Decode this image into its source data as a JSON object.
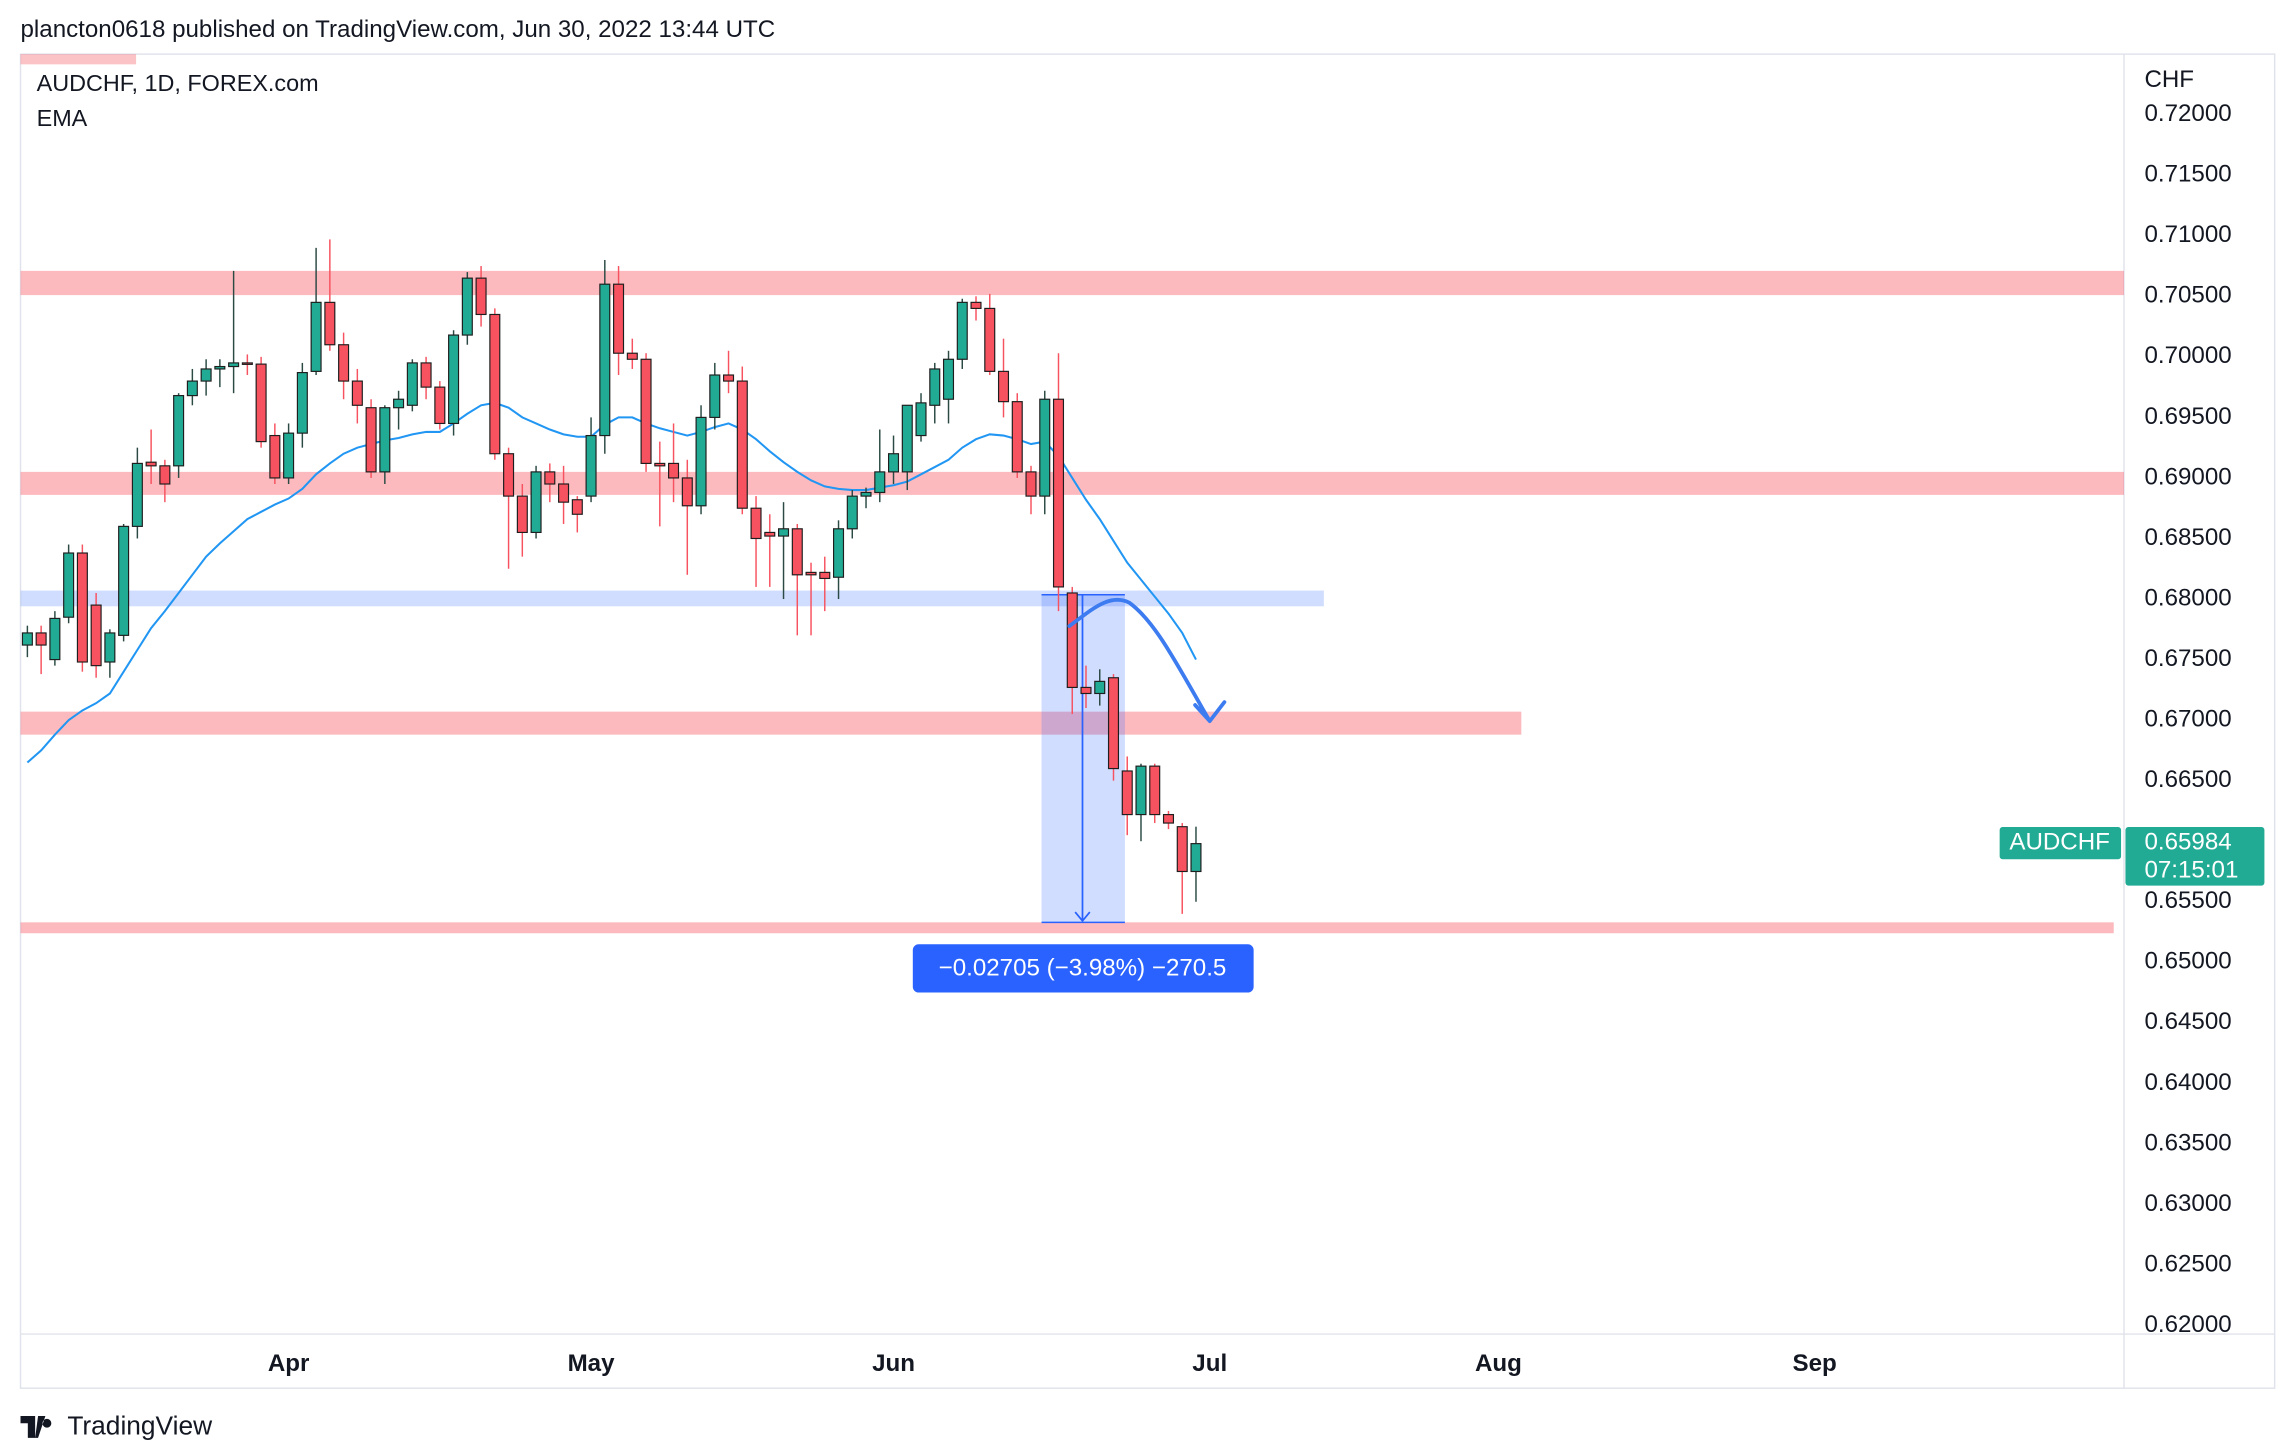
{
  "header": {
    "text": "plancton0618 published on TradingView.com, Jun 30, 2022 13:44 UTC"
  },
  "footer": {
    "logo": "TradingView"
  },
  "chart_data": {
    "type": "candlestick",
    "symbol": "AUDCHF, 1D, FOREX.com",
    "y_axis_label": "CHF",
    "up_color": "#22ab94",
    "down_color": "#f7525f",
    "grid": false,
    "categories": [
      null,
      null,
      null,
      null,
      null,
      null,
      null,
      null,
      null,
      null,
      null,
      null,
      null,
      null,
      null,
      null,
      null,
      null,
      null,
      "Apr",
      null,
      null,
      null,
      null,
      null,
      null,
      null,
      null,
      null,
      null,
      null,
      null,
      null,
      null,
      null,
      null,
      null,
      null,
      null,
      null,
      null,
      "May",
      null,
      null,
      null,
      null,
      null,
      null,
      null,
      null,
      null,
      null,
      null,
      null,
      null,
      null,
      null,
      null,
      null,
      null,
      null,
      null,
      null,
      "Jun",
      null,
      null,
      null,
      null,
      null,
      null,
      null,
      null,
      null,
      null,
      null,
      null,
      null,
      null,
      null,
      null,
      null,
      null,
      null,
      null,
      null,
      null,
      "Jul",
      null,
      null,
      null,
      null,
      null,
      null,
      null,
      null,
      null,
      null,
      null,
      null,
      null,
      null,
      null,
      null,
      null,
      null,
      null,
      null,
      "Aug",
      null,
      null,
      null,
      null,
      null,
      null,
      null,
      null,
      null,
      null,
      null,
      null,
      null,
      null,
      null,
      null,
      null,
      null,
      null,
      null,
      null,
      null,
      "Sep",
      null,
      null,
      null,
      null,
      null,
      null,
      null,
      null,
      null,
      null,
      null,
      null,
      null,
      null,
      null,
      null,
      null,
      null,
      null,
      null,
      null,
      null
    ],
    "ohlc": {
      "open": [
        0.6762,
        0.6772,
        0.675,
        0.6785,
        0.6838,
        0.6795,
        0.6748,
        0.677,
        0.686,
        0.6913,
        0.691,
        0.691,
        0.6968,
        0.698,
        0.699,
        0.6992,
        0.6995,
        0.6994,
        0.6935,
        0.69,
        0.6937,
        0.6988,
        0.7045,
        0.701,
        0.698,
        0.6958,
        0.6905,
        0.6958,
        0.696,
        0.6995,
        0.6975,
        0.6945,
        0.7018,
        0.7065,
        0.7035,
        0.692,
        0.6885,
        0.6855,
        0.6905,
        0.6895,
        0.6882,
        0.6885,
        0.6935,
        0.706,
        0.7003,
        0.6998,
        0.6912,
        0.6912,
        0.69,
        0.6877,
        0.695,
        0.6985,
        0.698,
        0.6875,
        0.6855,
        0.6852,
        0.6858,
        0.6822,
        0.6822,
        0.6818,
        0.6858,
        0.6885,
        0.6888,
        0.6905,
        0.6905,
        0.6935,
        0.696,
        0.6965,
        0.6998,
        0.7045,
        0.704,
        0.6988,
        0.6963,
        0.6905,
        0.6885,
        0.6965,
        0.6805,
        0.6727,
        0.6722,
        0.6735,
        0.6658,
        0.6622,
        0.6662,
        0.6622,
        0.6612,
        0.6575,
        null,
        null,
        null,
        null,
        null,
        null,
        null,
        null,
        null,
        null,
        null,
        null,
        null,
        null,
        null,
        null,
        null,
        null,
        null,
        null,
        null,
        null,
        null,
        null,
        null,
        null,
        null,
        null,
        null,
        null,
        null,
        null,
        null,
        null,
        null,
        null,
        null,
        null,
        null,
        null,
        null,
        null,
        null,
        null,
        null,
        null,
        null,
        null,
        null,
        null,
        null,
        null,
        null,
        null,
        null,
        null,
        null,
        null,
        null,
        null,
        null,
        null,
        null,
        null,
        null,
        null,
        null
      ],
      "high": [
        0.6778,
        0.6778,
        0.679,
        0.6845,
        0.6845,
        0.6805,
        0.6775,
        0.6862,
        0.6925,
        0.694,
        0.6915,
        0.697,
        0.699,
        0.6998,
        0.6998,
        0.7071,
        0.7002,
        0.7,
        0.6945,
        0.6945,
        0.6995,
        0.709,
        0.7097,
        0.702,
        0.699,
        0.6965,
        0.696,
        0.6972,
        0.6998,
        0.7,
        0.698,
        0.7022,
        0.707,
        0.7075,
        0.704,
        0.6925,
        0.6895,
        0.691,
        0.6912,
        0.691,
        0.6885,
        0.695,
        0.708,
        0.7075,
        0.7015,
        0.7003,
        0.693,
        0.6945,
        0.6915,
        0.696,
        0.6995,
        0.7005,
        0.6992,
        0.6885,
        0.687,
        0.688,
        0.6862,
        0.683,
        0.6835,
        0.6865,
        0.689,
        0.6892,
        0.694,
        0.6935,
        0.696,
        0.697,
        0.6995,
        0.7005,
        0.7048,
        0.705,
        0.7052,
        0.7015,
        0.697,
        0.691,
        0.6972,
        0.7003,
        0.681,
        0.6745,
        0.6742,
        0.6738,
        0.667,
        0.6664,
        0.6664,
        0.6625,
        0.6615,
        0.6612,
        null,
        null,
        null,
        null,
        null,
        null,
        null,
        null,
        null,
        null,
        null,
        null,
        null,
        null,
        null,
        null,
        null,
        null,
        null,
        null,
        null,
        null,
        null,
        null,
        null,
        null,
        null,
        null,
        null,
        null,
        null,
        null,
        null,
        null,
        null,
        null,
        null,
        null,
        null,
        null,
        null,
        null,
        null,
        null,
        null,
        null,
        null,
        null,
        null,
        null,
        null,
        null,
        null,
        null,
        null,
        null,
        null,
        null,
        null,
        null,
        null,
        null,
        null,
        null,
        null,
        null,
        null
      ],
      "low": [
        0.6752,
        0.6738,
        0.6745,
        0.678,
        0.674,
        0.6735,
        0.6735,
        0.6765,
        0.685,
        0.6895,
        0.688,
        0.69,
        0.696,
        0.6968,
        0.6975,
        0.697,
        0.6985,
        0.6925,
        0.6895,
        0.6895,
        0.6925,
        0.6985,
        0.7005,
        0.6965,
        0.6945,
        0.69,
        0.6895,
        0.694,
        0.6955,
        0.6965,
        0.694,
        0.6935,
        0.701,
        0.7025,
        0.6915,
        0.6825,
        0.6835,
        0.685,
        0.688,
        0.6862,
        0.6855,
        0.688,
        0.692,
        0.6985,
        0.699,
        0.6905,
        0.686,
        0.688,
        0.682,
        0.687,
        0.694,
        0.697,
        0.687,
        0.681,
        0.681,
        0.68,
        0.677,
        0.677,
        0.679,
        0.68,
        0.685,
        0.6875,
        0.688,
        0.6895,
        0.689,
        0.693,
        0.6945,
        0.6945,
        0.699,
        0.703,
        0.6985,
        0.695,
        0.69,
        0.687,
        0.687,
        0.679,
        0.6705,
        0.671,
        0.6712,
        0.665,
        0.6605,
        0.66,
        0.6615,
        0.661,
        0.654,
        0.655,
        null,
        null,
        null,
        null,
        null,
        null,
        null,
        null,
        null,
        null,
        null,
        null,
        null,
        null,
        null,
        null,
        null,
        null,
        null,
        null,
        null,
        null,
        null,
        null,
        null,
        null,
        null,
        null,
        null,
        null,
        null,
        null,
        null,
        null,
        null,
        null,
        null,
        null,
        null,
        null,
        null,
        null,
        null,
        null,
        null,
        null,
        null,
        null,
        null,
        null,
        null,
        null,
        null,
        null,
        null,
        null,
        null,
        null,
        null,
        null,
        null,
        null,
        null,
        null,
        null,
        null,
        null
      ],
      "close": [
        0.6772,
        0.6762,
        0.6784,
        0.6838,
        0.6748,
        0.6745,
        0.6772,
        0.686,
        0.6912,
        0.691,
        0.6895,
        0.6968,
        0.698,
        0.699,
        0.6992,
        0.6995,
        0.6994,
        0.693,
        0.69,
        0.6937,
        0.6987,
        0.7045,
        0.701,
        0.698,
        0.696,
        0.6905,
        0.6958,
        0.6965,
        0.6995,
        0.6975,
        0.6945,
        0.7018,
        0.7065,
        0.7035,
        0.692,
        0.6885,
        0.6855,
        0.6905,
        0.6895,
        0.688,
        0.687,
        0.6935,
        0.706,
        0.7003,
        0.6998,
        0.6912,
        0.691,
        0.69,
        0.6877,
        0.695,
        0.6985,
        0.698,
        0.6875,
        0.685,
        0.6852,
        0.6858,
        0.682,
        0.682,
        0.6817,
        0.6858,
        0.6885,
        0.6888,
        0.6905,
        0.692,
        0.696,
        0.6962,
        0.699,
        0.6998,
        0.7045,
        0.704,
        0.6988,
        0.6963,
        0.6905,
        0.6885,
        0.6965,
        0.681,
        0.6727,
        0.6722,
        0.6732,
        0.666,
        0.6622,
        0.6662,
        0.6622,
        0.6615,
        0.6575,
        0.6598,
        null,
        null,
        null,
        null,
        null,
        null,
        null,
        null,
        null,
        null,
        null,
        null,
        null,
        null,
        null,
        null,
        null,
        null,
        null,
        null,
        null,
        null,
        null,
        null,
        null,
        null,
        null,
        null,
        null,
        null,
        null,
        null,
        null,
        null,
        null,
        null,
        null,
        null,
        null,
        null,
        null,
        null,
        null,
        null,
        null,
        null,
        null,
        null,
        null,
        null,
        null,
        null,
        null,
        null,
        null,
        null,
        null,
        null,
        null,
        null,
        null,
        null,
        null,
        null,
        null,
        null,
        null
      ]
    },
    "series": [
      {
        "name": "EMA",
        "color": "#2196f3",
        "values": [
          0.6665,
          0.6675,
          0.6688,
          0.67,
          0.6708,
          0.6714,
          0.6722,
          0.674,
          0.6758,
          0.6776,
          0.679,
          0.6805,
          0.682,
          0.6835,
          0.6846,
          0.6856,
          0.6866,
          0.6872,
          0.6878,
          0.6883,
          0.6891,
          0.6903,
          0.6912,
          0.692,
          0.6925,
          0.6928,
          0.6931,
          0.6933,
          0.6936,
          0.6938,
          0.6938,
          0.6945,
          0.6953,
          0.696,
          0.6962,
          0.6958,
          0.695,
          0.6945,
          0.694,
          0.6936,
          0.6934,
          0.6934,
          0.6944,
          0.695,
          0.695,
          0.6945,
          0.6941,
          0.6938,
          0.6935,
          0.6938,
          0.6942,
          0.6945,
          0.694,
          0.6932,
          0.6922,
          0.6913,
          0.6905,
          0.6898,
          0.6893,
          0.6891,
          0.689,
          0.689,
          0.6892,
          0.6894,
          0.6897,
          0.6903,
          0.6909,
          0.6915,
          0.6925,
          0.6932,
          0.6936,
          0.6935,
          0.6932,
          0.6928,
          0.693,
          0.6918,
          0.69,
          0.6882,
          0.6866,
          0.6848,
          0.683,
          0.6816,
          0.6802,
          0.6788,
          0.6772,
          0.675,
          null,
          null,
          null,
          null,
          null,
          null,
          null,
          null,
          null,
          null,
          null,
          null,
          null,
          null,
          null,
          null,
          null,
          null,
          null,
          null,
          null,
          null,
          null,
          null,
          null,
          null,
          null,
          null,
          null,
          null,
          null,
          null,
          null,
          null,
          null,
          null,
          null,
          null,
          null,
          null,
          null,
          null,
          null,
          null,
          null,
          null,
          null,
          null,
          null,
          null,
          null,
          null,
          null,
          null,
          null,
          null,
          null,
          null,
          null,
          null,
          null,
          null,
          null,
          null,
          null,
          null,
          null
        ]
      }
    ],
    "ylim": [
      0.6193,
      0.725
    ],
    "yticks": [
      {
        "value": 0.72,
        "label": "0.72000"
      },
      {
        "value": 0.715,
        "label": "0.71500"
      },
      {
        "value": 0.71,
        "label": "0.71000"
      },
      {
        "value": 0.705,
        "label": "0.70500"
      },
      {
        "value": 0.7,
        "label": "0.70000"
      },
      {
        "value": 0.695,
        "label": "0.69500"
      },
      {
        "value": 0.69,
        "label": "0.69000"
      },
      {
        "value": 0.685,
        "label": "0.68500"
      },
      {
        "value": 0.68,
        "label": "0.68000"
      },
      {
        "value": 0.675,
        "label": "0.67500"
      },
      {
        "value": 0.67,
        "label": "0.67000"
      },
      {
        "value": 0.665,
        "label": "0.66500"
      },
      {
        "value": 0.66,
        "label": "0.66000"
      },
      {
        "value": 0.655,
        "label": "0.65500"
      },
      {
        "value": 0.65,
        "label": "0.65000"
      },
      {
        "value": 0.645,
        "label": "0.64500"
      },
      {
        "value": 0.64,
        "label": "0.64000"
      },
      {
        "value": 0.635,
        "label": "0.63500"
      },
      {
        "value": 0.63,
        "label": "0.63000"
      },
      {
        "value": 0.625,
        "label": "0.62500"
      },
      {
        "value": 0.62,
        "label": "0.62000"
      }
    ],
    "zones": [
      {
        "range": [
          0.7051,
          0.7071
        ],
        "color": "rgba(247,82,95,0.4)"
      },
      {
        "range": [
          0.6886,
          0.6905
        ],
        "color": "rgba(247,82,95,0.4)"
      },
      {
        "range": [
          0.6794,
          0.6807
        ],
        "color": "rgba(41,98,255,0.22)"
      },
      {
        "range": [
          0.6688,
          0.6707
        ],
        "color": "rgba(247,82,95,0.4)"
      },
      {
        "range": [
          0.6524,
          0.6533
        ],
        "color": "rgba(247,82,95,0.4)"
      }
    ],
    "measure": {
      "start": 0.68035,
      "end": 0.6533,
      "label": "−0.02705 (−3.98%) −270.5"
    },
    "last_price": {
      "name": "AUDCHF",
      "value": 0.65984,
      "label": "0.65984",
      "countdown": "07:15:01",
      "color": "#22ab94"
    }
  }
}
